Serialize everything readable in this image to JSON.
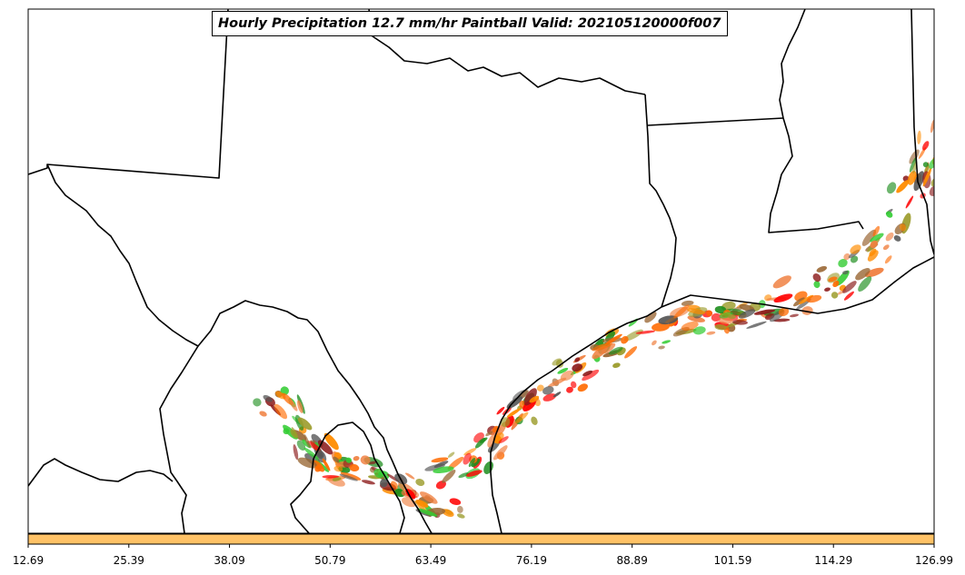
{
  "chart_data": {
    "type": "heatmap",
    "title": "Hourly Precipitation 12.7 mm/hr Paintball Valid: 202105120000f007",
    "colorbar": {
      "orientation": "horizontal",
      "tick_labels": [
        "12.69",
        "25.39",
        "38.09",
        "50.79",
        "63.49",
        "76.19",
        "88.89",
        "101.59",
        "114.29",
        "126.99"
      ],
      "range": [
        12.69,
        126.99
      ],
      "color": "#ffc266"
    },
    "paintball_colors": [
      "#ff0000",
      "#ff8c00",
      "#ff6a00",
      "#1a8c1a",
      "#33cc33",
      "#8b1a1a",
      "#996633",
      "#9b9b2a",
      "#555555",
      "#f08040"
    ],
    "basemap": "state boundaries and coastline: Texas, Louisiana, Mississippi, northeastern Mexico",
    "grid": false
  }
}
